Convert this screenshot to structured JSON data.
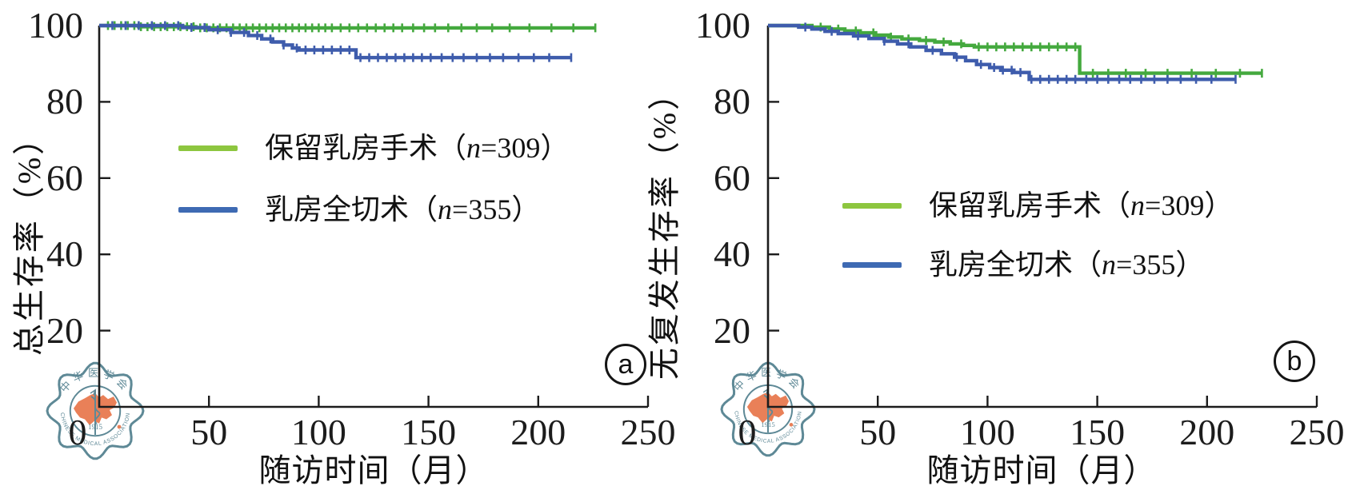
{
  "figure": {
    "description": "Two Kaplan-Meier survival curve panels comparing breast-conserving surgery vs total mastectomy",
    "background": "#ffffff"
  },
  "colors": {
    "axis": "#1c1c1c",
    "green_curve": "#44a93e",
    "blue_curve": "#3e5cac",
    "green_legend": "#8dc63f",
    "blue_legend": "#3e6ab3"
  },
  "logo": {
    "top_text": "中华医学会",
    "bottom_text": "CHINESE MEDICAL ASSOCIATION",
    "year": "1915",
    "teal": "#517f8e",
    "orange": "#e8764a"
  },
  "panels": [
    {
      "panel_label": "a",
      "y_axis_label": "总生存率（%）",
      "x_axis_label": "随访时间（月）",
      "origin_label": "0",
      "y_tick_labels": [
        "100",
        "80",
        "60",
        "40",
        "20"
      ],
      "x_tick_labels": [
        "50",
        "100",
        "150",
        "200",
        "250"
      ],
      "legend": [
        {
          "prefix": "保留乳房手术（",
          "var": "n",
          "suffix": "=309）"
        },
        {
          "prefix": "乳房全切术（",
          "var": "n",
          "suffix": "=355）"
        }
      ]
    },
    {
      "panel_label": "b",
      "y_axis_label": "无复发生存率（%）",
      "x_axis_label": "随访时间（月）",
      "origin_label": "0",
      "y_tick_labels": [
        "100",
        "80",
        "60",
        "40",
        "20"
      ],
      "x_tick_labels": [
        "50",
        "100",
        "150",
        "200",
        "250"
      ],
      "legend": [
        {
          "prefix": "保留乳房手术（",
          "var": "n",
          "suffix": "=309）"
        },
        {
          "prefix": "乳房全切术（",
          "var": "n",
          "suffix": "=355）"
        }
      ]
    }
  ],
  "chart_data": [
    {
      "type": "line",
      "subtype": "kaplan-meier-step",
      "panel": "a",
      "title": "总生存率",
      "xlabel": "随访时间（月）",
      "ylabel": "总生存率（%）",
      "xlim": [
        0,
        250
      ],
      "ylim": [
        0,
        100
      ],
      "x_ticks": [
        0,
        50,
        100,
        150,
        200,
        250
      ],
      "y_ticks": [
        0,
        20,
        40,
        60,
        80,
        100
      ],
      "grid": false,
      "legend_position": "center-left-inside",
      "series": [
        {
          "name": "保留乳房手术（n=309）",
          "color": "#44a93e",
          "steps": [
            [
              0,
              100
            ],
            [
              18,
              99.7
            ],
            [
              44,
              99.4
            ],
            [
              226,
              99.4
            ]
          ],
          "censor_times": [
            4,
            7,
            10,
            13,
            16,
            19,
            22,
            25,
            28,
            31,
            34,
            37,
            40,
            43,
            46,
            49,
            52,
            55,
            58,
            61,
            64,
            67,
            70,
            73,
            76,
            79,
            82,
            85,
            88,
            91,
            94,
            97,
            100,
            103,
            106,
            110,
            114,
            118,
            122,
            126,
            130,
            134,
            138,
            143,
            148,
            153,
            159,
            165,
            172,
            179,
            187,
            196,
            206,
            216,
            226
          ]
        },
        {
          "name": "乳房全切术（n=355）",
          "color": "#3e5cac",
          "steps": [
            [
              0,
              100
            ],
            [
              38,
              99.5
            ],
            [
              50,
              98.9
            ],
            [
              60,
              98.2
            ],
            [
              68,
              97.4
            ],
            [
              74,
              96.5
            ],
            [
              79,
              95.7
            ],
            [
              84,
              94.9
            ],
            [
              88,
              94.1
            ],
            [
              91,
              93.6
            ],
            [
              117,
              91.6
            ],
            [
              215,
              91.6
            ]
          ],
          "censor_times": [
            6,
            12,
            18,
            24,
            30,
            36,
            42,
            48,
            54,
            60,
            66,
            72,
            78,
            84,
            90,
            94,
            98,
            102,
            106,
            110,
            114,
            119,
            123,
            127,
            131,
            135,
            139,
            143,
            147,
            151,
            156,
            161,
            166,
            172,
            178,
            184,
            191,
            198,
            205,
            215
          ]
        }
      ]
    },
    {
      "type": "line",
      "subtype": "kaplan-meier-step",
      "panel": "b",
      "title": "无复发生存率",
      "xlabel": "随访时间（月）",
      "ylabel": "无复发生存率（%）",
      "xlim": [
        0,
        250
      ],
      "ylim": [
        0,
        100
      ],
      "x_ticks": [
        0,
        50,
        100,
        150,
        200,
        250
      ],
      "y_ticks": [
        0,
        20,
        40,
        60,
        80,
        100
      ],
      "grid": false,
      "legend_position": "center-left-inside",
      "series": [
        {
          "name": "保留乳房手术（n=309）",
          "color": "#44a93e",
          "steps": [
            [
              0,
              100
            ],
            [
              20,
              99.6
            ],
            [
              28,
              99.1
            ],
            [
              35,
              98.6
            ],
            [
              42,
              98.1
            ],
            [
              49,
              97.5
            ],
            [
              55,
              97.0
            ],
            [
              61,
              96.5
            ],
            [
              69,
              96.1
            ],
            [
              76,
              95.7
            ],
            [
              83,
              95.2
            ],
            [
              89,
              94.8
            ],
            [
              94,
              94.4
            ],
            [
              142,
              87.5
            ],
            [
              225,
              87.5
            ]
          ],
          "censor_times": [
            24,
            32,
            40,
            48,
            56,
            64,
            72,
            80,
            88,
            96,
            100,
            104,
            108,
            112,
            116,
            120,
            124,
            128,
            132,
            136,
            140,
            148,
            155,
            163,
            172,
            182,
            193,
            204,
            215,
            225
          ]
        },
        {
          "name": "乳房全切术（n=355）",
          "color": "#3e5cac",
          "steps": [
            [
              0,
              100
            ],
            [
              14,
              99.6
            ],
            [
              20,
              99.1
            ],
            [
              26,
              98.5
            ],
            [
              32,
              97.9
            ],
            [
              39,
              97.3
            ],
            [
              46,
              96.6
            ],
            [
              53,
              95.9
            ],
            [
              59,
              95.2
            ],
            [
              65,
              94.4
            ],
            [
              72,
              93.5
            ],
            [
              79,
              92.6
            ],
            [
              85,
              91.7
            ],
            [
              90,
              90.8
            ],
            [
              95,
              89.8
            ],
            [
              101,
              89.0
            ],
            [
              106,
              88.3
            ],
            [
              112,
              87.7
            ],
            [
              119,
              85.9
            ],
            [
              213,
              85.9
            ]
          ],
          "censor_times": [
            17,
            29,
            41,
            53,
            64,
            75,
            86,
            97,
            103,
            107,
            111,
            115,
            120,
            124,
            128,
            132,
            136,
            140,
            145,
            150,
            155,
            160,
            165,
            170,
            176,
            182,
            188,
            195,
            202,
            213
          ]
        }
      ]
    }
  ]
}
